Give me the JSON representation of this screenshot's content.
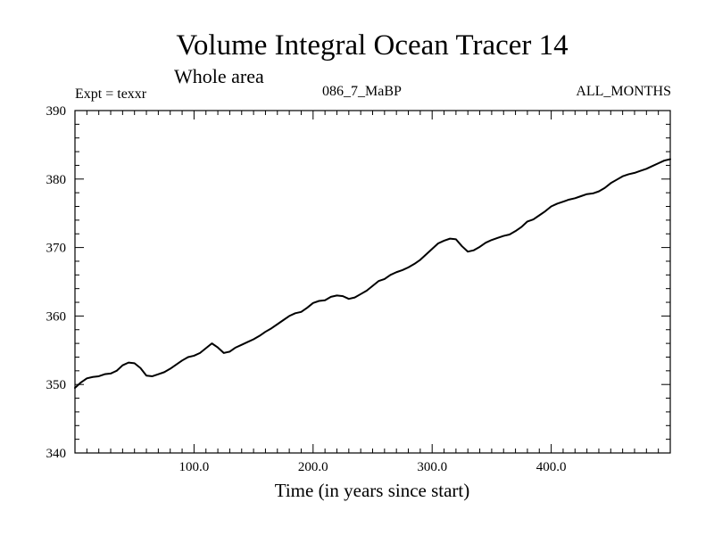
{
  "chart_data": {
    "type": "line",
    "title": "Volume Integral Ocean Tracer 14",
    "subtitle": "Whole area",
    "annotations": {
      "left": "Expt = texxr",
      "center": "086_7_MaBP",
      "right": "ALL_MONTHS"
    },
    "xlabel": "Time (in years since start)",
    "ylabel": "",
    "xlim": [
      0,
      500
    ],
    "ylim": [
      340,
      390
    ],
    "grid": false,
    "x_ticks": [
      {
        "value": 100,
        "label": "100.0"
      },
      {
        "value": 200,
        "label": "200.0"
      },
      {
        "value": 300,
        "label": "300.0"
      },
      {
        "value": 400,
        "label": "400.0"
      }
    ],
    "y_ticks": [
      {
        "value": 340,
        "label": "340"
      },
      {
        "value": 350,
        "label": "350"
      },
      {
        "value": 360,
        "label": "360"
      },
      {
        "value": 370,
        "label": "370"
      },
      {
        "value": 380,
        "label": "380"
      },
      {
        "value": 390,
        "label": "390"
      }
    ],
    "series": [
      {
        "name": "Tracer 14",
        "color": "#000000",
        "x": [
          0,
          5,
          10,
          15,
          20,
          25,
          30,
          35,
          40,
          45,
          50,
          55,
          60,
          65,
          70,
          75,
          80,
          85,
          90,
          95,
          100,
          105,
          110,
          115,
          120,
          125,
          130,
          135,
          140,
          145,
          150,
          155,
          160,
          165,
          170,
          175,
          180,
          185,
          190,
          195,
          200,
          205,
          210,
          215,
          220,
          225,
          230,
          235,
          240,
          245,
          250,
          255,
          260,
          265,
          270,
          275,
          280,
          285,
          290,
          295,
          300,
          305,
          310,
          315,
          320,
          325,
          330,
          335,
          340,
          345,
          350,
          355,
          360,
          365,
          370,
          375,
          380,
          385,
          390,
          395,
          400,
          405,
          410,
          415,
          420,
          425,
          430,
          435,
          440,
          445,
          450,
          455,
          460,
          465,
          470,
          475,
          480,
          485,
          490,
          495,
          500
        ],
        "y": [
          349.5,
          350.3,
          350.9,
          351.1,
          351.2,
          351.5,
          351.6,
          352.0,
          352.8,
          353.2,
          353.1,
          352.4,
          351.3,
          351.2,
          351.5,
          351.8,
          352.3,
          352.9,
          353.5,
          354.0,
          354.2,
          354.6,
          355.3,
          356.0,
          355.4,
          354.6,
          354.8,
          355.4,
          355.8,
          356.2,
          356.6,
          357.1,
          357.7,
          358.2,
          358.8,
          359.4,
          360.0,
          360.4,
          360.6,
          361.2,
          361.9,
          362.2,
          362.3,
          362.8,
          363.0,
          362.9,
          362.5,
          362.7,
          363.2,
          363.7,
          364.4,
          365.1,
          365.4,
          366.0,
          366.4,
          366.7,
          367.1,
          367.6,
          368.2,
          369.0,
          369.8,
          370.6,
          371.0,
          371.3,
          371.2,
          370.2,
          369.4,
          369.6,
          370.1,
          370.7,
          371.1,
          371.4,
          371.7,
          371.9,
          372.4,
          373.0,
          373.8,
          374.1,
          374.7,
          375.3,
          376.0,
          376.4,
          376.7,
          377.0,
          377.2,
          377.5,
          377.8,
          377.9,
          378.2,
          378.7,
          379.4,
          379.9,
          380.4,
          380.7,
          380.9,
          381.2,
          381.5,
          381.9,
          382.3,
          382.7,
          382.9
        ]
      }
    ]
  }
}
